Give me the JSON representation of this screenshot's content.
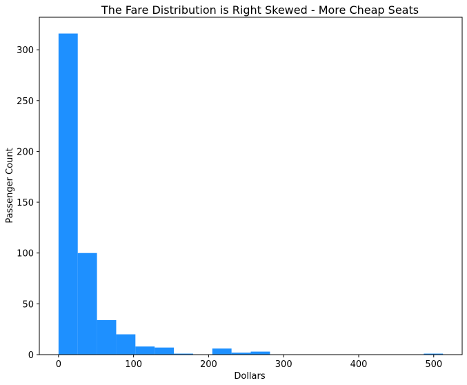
{
  "chart_data": {
    "type": "bar",
    "title": "The Fare Distribution is Right Skewed - More Cheap Seats",
    "xlabel": "Dollars",
    "ylabel": "Passenger Count",
    "bin_width": 25.6164,
    "bins_start": 0,
    "values": [
      316,
      100,
      34,
      20,
      8,
      7,
      1,
      0,
      6,
      2,
      3,
      0,
      0,
      0,
      0,
      0,
      0,
      0,
      0,
      1
    ],
    "xlim": [
      -25.6,
      537.9
    ],
    "ylim": [
      0,
      332
    ],
    "xticks": [
      0,
      100,
      200,
      300,
      400,
      500
    ],
    "yticks": [
      0,
      50,
      100,
      150,
      200,
      250,
      300
    ],
    "bar_color": "#1e90ff",
    "grid": false,
    "legend": "none"
  }
}
